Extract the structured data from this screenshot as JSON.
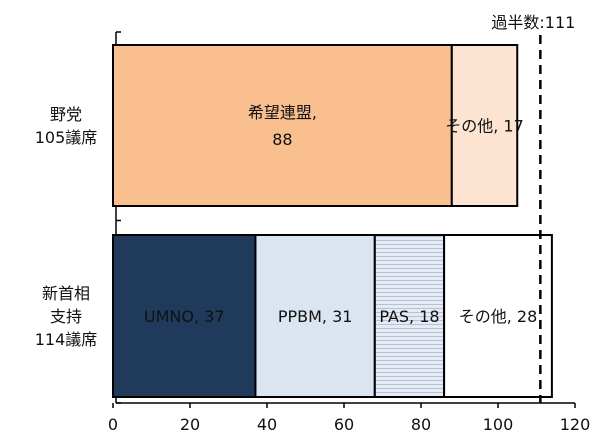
{
  "chart_data": {
    "type": "bar",
    "orientation": "horizontal",
    "stacked": true,
    "title": "",
    "xlabel": "",
    "ylabel": "",
    "xlim": [
      0,
      120
    ],
    "x_ticks": [
      0,
      20,
      40,
      60,
      80,
      100,
      120
    ],
    "grid": false,
    "legend": "none",
    "categories": [
      {
        "id": "opposition",
        "label_lines": [
          "野党",
          "105議席"
        ],
        "total": 105,
        "segments": [
          {
            "name": "希望連盟",
            "label_lines": [
              "希望連盟,",
              "88"
            ],
            "value": 88,
            "color": "#f9bf8f",
            "text_color": "#222222"
          },
          {
            "name": "その他",
            "label_lines": [
              "その他, 17"
            ],
            "value": 17,
            "color": "#fde3d1",
            "text_color": "#222222"
          }
        ]
      },
      {
        "id": "new_pm",
        "label_lines": [
          "新首相",
          "支持",
          "114議席"
        ],
        "total": 114,
        "segments": [
          {
            "name": "UMNO",
            "label_lines": [
              "UMNO, 37"
            ],
            "value": 37,
            "color": "#203a5c",
            "text_color": "#ffffff"
          },
          {
            "name": "PPBM",
            "label_lines": [
              "PPBM, 31"
            ],
            "value": 31,
            "color": "#dbe5f1",
            "text_color": "#222222"
          },
          {
            "name": "PAS",
            "label_lines": [
              "PAS, 18"
            ],
            "value": 18,
            "color": "#e6eaf2",
            "text_color": "#222222",
            "pattern": "horizontal-lines"
          },
          {
            "name": "その他",
            "label_lines": [
              "その他, 28"
            ],
            "value": 28,
            "color": "#ffffff",
            "text_color": "#222222"
          }
        ]
      }
    ],
    "reference_line": {
      "value": 111,
      "label": "過半数:111",
      "style": "dashed"
    }
  }
}
